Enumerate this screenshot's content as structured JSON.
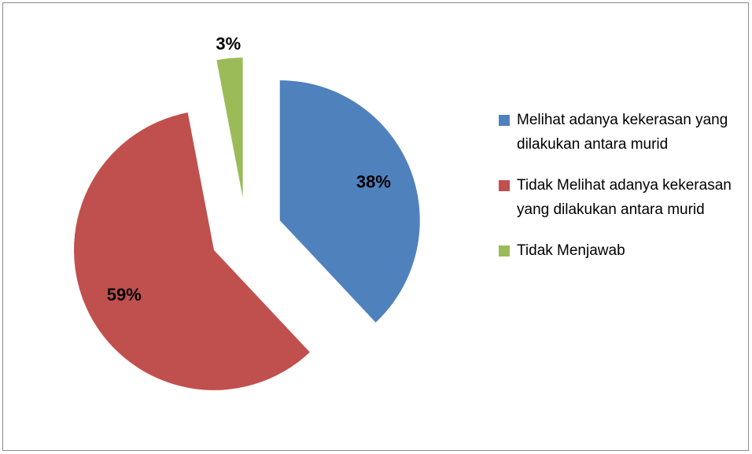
{
  "chart_data": {
    "type": "pie",
    "categories": [
      "Melihat adanya kekerasan yang dilakukan antara murid",
      "Tidak Melihat adanya kekerasan yang dilakukan antara murid",
      "Tidak Menjawab"
    ],
    "values": [
      38,
      59,
      3
    ],
    "value_labels": [
      "38%",
      "59%",
      "3%"
    ],
    "colors": [
      "#4f81bd",
      "#c0504d",
      "#9bbb59"
    ],
    "legend": "right"
  }
}
